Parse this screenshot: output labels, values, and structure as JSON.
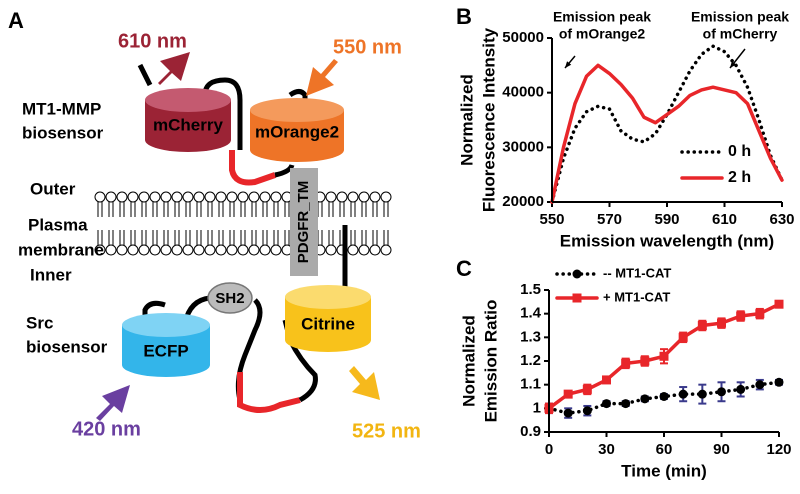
{
  "diagram": {
    "panel_label": "A",
    "emission_top": "610 nm",
    "excitation_top": "550 nm",
    "top_sensor": [
      "MT1-MMP",
      "biosensor"
    ],
    "donor_top": "mCherry",
    "acceptor_top": "mOrange2",
    "outer": "Outer",
    "membrane": [
      "Plasma",
      "membrane"
    ],
    "inner": "Inner",
    "anchor": "PDGFR_TM",
    "domain": "SH2",
    "bottom_sensor": [
      "Src",
      "biosensor"
    ],
    "donor_bottom": "ECFP",
    "acceptor_bottom": "Citrine",
    "excitation_bottom": "420 nm",
    "emission_bottom": "525 nm"
  },
  "chart_data": [
    {
      "type": "line",
      "panel_label": "B",
      "x_label": "Emission wavelength (nm)",
      "y_label": [
        "Normalized",
        "Fluorescence Intensity"
      ],
      "annotations": [
        [
          "Emission peak",
          "of mOrange2"
        ],
        [
          "Emission peak",
          "of mCherry"
        ]
      ],
      "x": [
        550,
        554,
        558,
        562,
        566,
        570,
        574,
        578,
        582,
        586,
        590,
        594,
        598,
        602,
        606,
        610,
        614,
        618,
        622,
        626,
        630
      ],
      "series": [
        {
          "name": "0 h",
          "color": "#000000",
          "style": "dotted",
          "values": [
            20000,
            28000,
            33500,
            36500,
            37500,
            37000,
            33000,
            31500,
            31000,
            32500,
            36000,
            40000,
            44000,
            47000,
            48500,
            47500,
            45000,
            41000,
            35000,
            28500,
            24000
          ]
        },
        {
          "name": "2 h",
          "color": "#e8262a",
          "style": "solid",
          "values": [
            20000,
            30000,
            38000,
            43000,
            45000,
            43500,
            41500,
            39000,
            35500,
            34500,
            36000,
            37500,
            39500,
            40500,
            41000,
            40500,
            40000,
            38000,
            33000,
            28000,
            24000
          ]
        }
      ],
      "xlim": [
        550,
        630
      ],
      "xticks": [
        550,
        570,
        590,
        610,
        630
      ],
      "ylim": [
        20000,
        50000
      ],
      "yticks": [
        20000,
        30000,
        40000,
        50000
      ],
      "legend": "lower right"
    },
    {
      "type": "line",
      "panel_label": "C",
      "x_label": "Time (min)",
      "y_label": [
        "Normalized",
        "Emission Ratio"
      ],
      "x": [
        0,
        10,
        20,
        30,
        40,
        50,
        60,
        70,
        80,
        90,
        100,
        110,
        120
      ],
      "series": [
        {
          "name": "-- MT1-CAT",
          "color": "#000000",
          "style": "dotted",
          "marker": "circle",
          "error_color": "#3a3a8c",
          "values": [
            1.0,
            0.98,
            0.99,
            1.02,
            1.02,
            1.04,
            1.05,
            1.06,
            1.06,
            1.07,
            1.08,
            1.1,
            1.11
          ],
          "errors": [
            0.02,
            0.02,
            0.02,
            0.01,
            0.01,
            0.01,
            0.01,
            0.03,
            0.04,
            0.04,
            0.03,
            0.02,
            0.01
          ]
        },
        {
          "name": "+ MT1-CAT",
          "color": "#e8262a",
          "style": "solid",
          "marker": "square",
          "error_color": "#e8262a",
          "values": [
            1.0,
            1.06,
            1.08,
            1.12,
            1.19,
            1.2,
            1.22,
            1.3,
            1.35,
            1.36,
            1.39,
            1.4,
            1.44
          ],
          "errors": [
            0.02,
            0.01,
            0.02,
            0.01,
            0.02,
            0.02,
            0.03,
            0.02,
            0.02,
            0.02,
            0.02,
            0.02,
            0.01
          ]
        }
      ],
      "xlim": [
        0,
        120
      ],
      "xticks": [
        0,
        30,
        60,
        90,
        120
      ],
      "ylim": [
        0.9,
        1.5
      ],
      "yticks": [
        0.9,
        1,
        1.1,
        1.2,
        1.3,
        1.4,
        1.5
      ],
      "legend": "upper left"
    }
  ]
}
